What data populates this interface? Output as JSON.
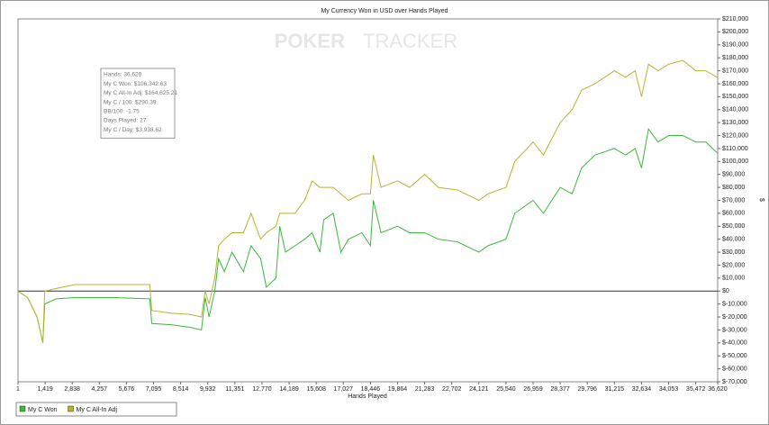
{
  "chart_data": {
    "type": "line",
    "title": "My Currency Won in USD over Hands Played",
    "xlabel": "Hands Played",
    "ylabel": "$",
    "watermark": [
      "POKER",
      "TRACKER"
    ],
    "stats_box": [
      "Hands: 36,620",
      "My C Won: $106,342.63",
      "My C All-In Adj: $164,625.21",
      "My C / 100: $290.39",
      "BB/100: -1.75",
      "Days Played: 27",
      "My C / Day: $3,938.62"
    ],
    "x": [
      1,
      500,
      1000,
      1300,
      1400,
      2000,
      3000,
      5000,
      6900,
      7000,
      8000,
      9000,
      9600,
      9800,
      10000,
      10300,
      10500,
      10800,
      11200,
      11800,
      12200,
      12700,
      13000,
      13500,
      13700,
      14000,
      14500,
      15000,
      15400,
      15800,
      16000,
      16500,
      16900,
      17300,
      18000,
      18446,
      18600,
      19000,
      19864,
      20500,
      21283,
      22000,
      23000,
      24121,
      24600,
      25540,
      26000,
      26959,
      27500,
      28377,
      29000,
      29500,
      30200,
      31215,
      31800,
      32300,
      32634,
      33000,
      33500,
      34053,
      34800,
      35472,
      36000,
      36620
    ],
    "series": [
      {
        "name": "My C Won",
        "color": "#3cb83c",
        "values": [
          0,
          -5000,
          -20000,
          -40000,
          -10000,
          -6000,
          -5000,
          -5000,
          -6000,
          -25000,
          -26000,
          -28000,
          -30000,
          -5000,
          -20000,
          0,
          25000,
          15000,
          30000,
          15000,
          35000,
          25000,
          3000,
          10000,
          50000,
          30000,
          35000,
          40000,
          45000,
          30000,
          55000,
          60000,
          30000,
          40000,
          45000,
          35000,
          70000,
          45000,
          50000,
          45000,
          45000,
          40000,
          38000,
          30000,
          35000,
          40000,
          60000,
          70000,
          60000,
          80000,
          75000,
          95000,
          105000,
          110000,
          105000,
          110000,
          95000,
          125000,
          115000,
          120000,
          120000,
          115000,
          115000,
          106342.63
        ]
      },
      {
        "name": "My C All-In Adj",
        "color": "#b5b534",
        "values": [
          0,
          -5000,
          -20000,
          -40000,
          0,
          2000,
          5000,
          5000,
          5000,
          -15000,
          -17000,
          -18000,
          -20000,
          0,
          -10000,
          10000,
          35000,
          40000,
          45000,
          45000,
          60000,
          40000,
          45000,
          50000,
          60000,
          60000,
          60000,
          70000,
          85000,
          80000,
          80000,
          80000,
          75000,
          70000,
          75000,
          75000,
          105000,
          80000,
          85000,
          80000,
          90000,
          80000,
          78000,
          70000,
          75000,
          80000,
          100000,
          115000,
          105000,
          130000,
          140000,
          155000,
          160000,
          170000,
          165000,
          170000,
          150000,
          175000,
          170000,
          175000,
          178000,
          170000,
          170000,
          164625.21
        ]
      }
    ],
    "xlim": [
      1,
      36620
    ],
    "xticks": [
      1,
      {
        "value": 1419,
        "label": "1,419"
      },
      {
        "value": 2838,
        "label": "2,838"
      },
      {
        "value": 4257,
        "label": "4,257"
      },
      {
        "value": 5676,
        "label": "5,676"
      },
      {
        "value": 7095,
        "label": "7,095"
      },
      {
        "value": 8514,
        "label": "8,514"
      },
      {
        "value": 9932,
        "label": "9,932"
      },
      {
        "value": 11351,
        "label": "11,351"
      },
      {
        "value": 12770,
        "label": "12,770"
      },
      {
        "value": 14189,
        "label": "14,189"
      },
      {
        "value": 15608,
        "label": "15,608"
      },
      {
        "value": 17027,
        "label": "17,027"
      },
      {
        "value": 18446,
        "label": "18,446"
      },
      {
        "value": 19864,
        "label": "19,864"
      },
      {
        "value": 21283,
        "label": "21,283"
      },
      {
        "value": 22702,
        "label": "22,702"
      },
      {
        "value": 24121,
        "label": "24,121"
      },
      {
        "value": 25540,
        "label": "25,540"
      },
      {
        "value": 26959,
        "label": "26,959"
      },
      {
        "value": 28377,
        "label": "28,377"
      },
      {
        "value": 29796,
        "label": "29,796"
      },
      {
        "value": 31215,
        "label": "31,215"
      },
      {
        "value": 32634,
        "label": "32,634"
      },
      {
        "value": 34053,
        "label": "34,053"
      },
      {
        "value": 35472,
        "label": "35,472"
      },
      {
        "value": 36620,
        "label": "36,620"
      }
    ],
    "ylim": [
      -70000,
      210000
    ],
    "yticks": [
      {
        "value": -70000,
        "label": "$-70,000"
      },
      {
        "value": -60000,
        "label": "$-60,000"
      },
      {
        "value": -50000,
        "label": "$-50,000"
      },
      {
        "value": -40000,
        "label": "$-40,000"
      },
      {
        "value": -30000,
        "label": "$-30,000"
      },
      {
        "value": -20000,
        "label": "$-20,000"
      },
      {
        "value": -10000,
        "label": "$-10,000"
      },
      {
        "value": 0,
        "label": "$0"
      },
      {
        "value": 10000,
        "label": "$10,000"
      },
      {
        "value": 20000,
        "label": "$20,000"
      },
      {
        "value": 30000,
        "label": "$30,000"
      },
      {
        "value": 40000,
        "label": "$40,000"
      },
      {
        "value": 50000,
        "label": "$50,000"
      },
      {
        "value": 60000,
        "label": "$60,000"
      },
      {
        "value": 70000,
        "label": "$70,000"
      },
      {
        "value": 80000,
        "label": "$80,000"
      },
      {
        "value": 90000,
        "label": "$90,000"
      },
      {
        "value": 100000,
        "label": "$100,000"
      },
      {
        "value": 110000,
        "label": "$110,000"
      },
      {
        "value": 120000,
        "label": "$120,000"
      },
      {
        "value": 130000,
        "label": "$130,000"
      },
      {
        "value": 140000,
        "label": "$140,000"
      },
      {
        "value": 150000,
        "label": "$150,000"
      },
      {
        "value": 160000,
        "label": "$160,000"
      },
      {
        "value": 170000,
        "label": "$170,000"
      },
      {
        "value": 180000,
        "label": "$180,000"
      },
      {
        "value": 190000,
        "label": "$190,000"
      },
      {
        "value": 200000,
        "label": "$200,000"
      },
      {
        "value": 210000,
        "label": "$210,000"
      }
    ]
  }
}
